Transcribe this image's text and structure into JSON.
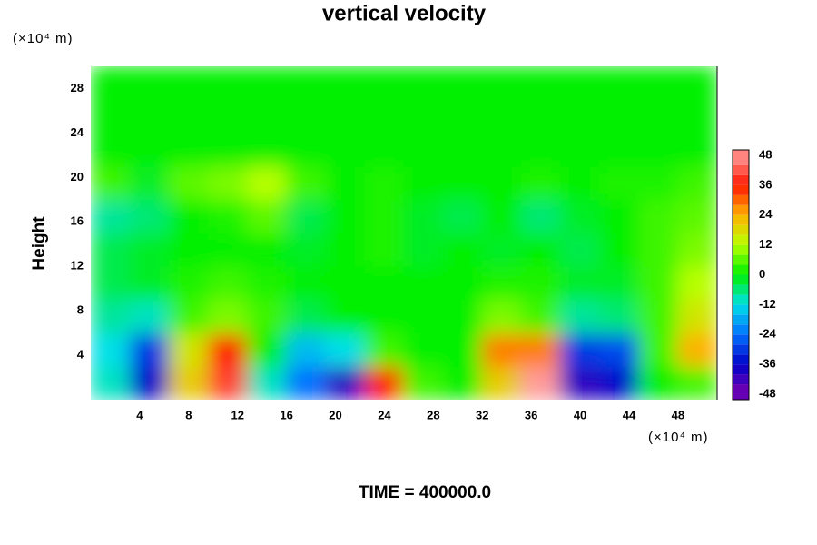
{
  "chart_data": {
    "type": "heatmap",
    "title": "vertical velocity",
    "y_unit": "(×10⁴ m)",
    "x_unit": "(×10⁴ m)",
    "ylabel": "Height",
    "footer": "TIME = 400000.0",
    "xlim": [
      0,
      51.2
    ],
    "ylim": [
      0,
      30
    ],
    "xticks": [
      4,
      8,
      12,
      16,
      20,
      24,
      28,
      32,
      36,
      40,
      44,
      48
    ],
    "yticks": [
      4,
      8,
      12,
      16,
      20,
      24,
      28
    ],
    "x": [
      1.6,
      4.8,
      8,
      11.2,
      14.4,
      17.6,
      20.8,
      24,
      27.2,
      30.4,
      33.6,
      36.8,
      40,
      43.2,
      46.4,
      49.6
    ],
    "y": [
      1.5,
      4.5,
      7.5,
      10.5,
      13.5,
      16.5,
      19.5,
      22.5,
      25.5,
      28.5
    ],
    "z": [
      [
        -10,
        -36,
        20,
        40,
        -10,
        -24,
        -40,
        36,
        4,
        0,
        20,
        48,
        -40,
        -36,
        0,
        4
      ],
      [
        -12,
        -30,
        16,
        36,
        0,
        -16,
        -12,
        4,
        0,
        0,
        28,
        28,
        -30,
        -28,
        4,
        24
      ],
      [
        -8,
        -10,
        4,
        8,
        4,
        -4,
        0,
        0,
        0,
        0,
        8,
        4,
        -8,
        -6,
        4,
        16
      ],
      [
        -4,
        -2,
        2,
        4,
        2,
        0,
        0,
        0,
        0,
        0,
        2,
        2,
        -2,
        -2,
        4,
        12
      ],
      [
        -4,
        -2,
        0,
        0,
        0,
        -2,
        0,
        2,
        -2,
        0,
        -2,
        0,
        -4,
        0,
        4,
        8
      ],
      [
        -8,
        -6,
        0,
        2,
        6,
        -4,
        0,
        2,
        -2,
        -4,
        0,
        -6,
        -2,
        0,
        4,
        6
      ],
      [
        4,
        -2,
        6,
        8,
        12,
        4,
        0,
        2,
        0,
        0,
        0,
        2,
        0,
        2,
        2,
        4
      ],
      [
        0,
        0,
        0,
        0,
        0,
        0,
        0,
        0,
        0,
        0,
        0,
        0,
        0,
        0,
        0,
        0
      ],
      [
        0,
        0,
        0,
        0,
        0,
        0,
        0,
        0,
        0,
        0,
        0,
        0,
        0,
        0,
        0,
        0
      ],
      [
        0,
        0,
        0,
        0,
        0,
        0,
        0,
        0,
        0,
        0,
        0,
        0,
        0,
        0,
        0,
        0
      ]
    ],
    "clim": [
      -48,
      48
    ],
    "cticks": [
      48,
      36,
      24,
      12,
      0,
      -12,
      -24,
      -36,
      -48
    ],
    "colormap": [
      "#7a00b0",
      "#0000c8",
      "#0070ff",
      "#00e0e8",
      "#00f000",
      "#b8ff00",
      "#ffb000",
      "#ff1800",
      "#ff9a9a"
    ]
  }
}
